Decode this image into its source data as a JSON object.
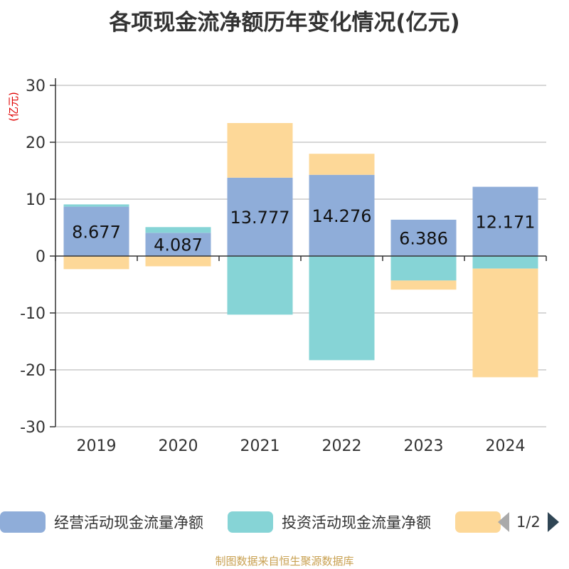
{
  "title": "各项现金流净额历年变化情况(亿元)",
  "source_note": "制图数据来自恒生聚源数据库",
  "legend": {
    "pager": "1/2"
  },
  "colors": {
    "operating": "#8fadd9",
    "investing": "#86d4d6",
    "financing": "#fdd898",
    "axis": "#333333",
    "grid": "#bfbfbf",
    "unit": "#e00000"
  },
  "chart_data": {
    "type": "bar",
    "stacked": true,
    "y_unit": "(亿元)",
    "categories": [
      "2019",
      "2020",
      "2021",
      "2022",
      "2023",
      "2024"
    ],
    "series": [
      {
        "name": "经营活动现金流量净额",
        "values": [
          8.677,
          4.087,
          13.777,
          14.276,
          6.386,
          12.171
        ]
      },
      {
        "name": "投资活动现金流量净额",
        "values": [
          0.4,
          1.0,
          -10.3,
          -18.3,
          -4.3,
          -2.2
        ]
      },
      {
        "name": "",
        "values": [
          -2.3,
          -1.8,
          9.6,
          3.7,
          -1.6,
          -19.1
        ]
      }
    ],
    "data_labels": [
      "8.677",
      "4.087",
      "13.777",
      "14.276",
      "6.386",
      "12.171"
    ],
    "ylim": [
      -30,
      30
    ],
    "yticks": [
      -30,
      -20,
      -10,
      0,
      10,
      20,
      30
    ],
    "grid": true,
    "legend_position": "bottom"
  }
}
